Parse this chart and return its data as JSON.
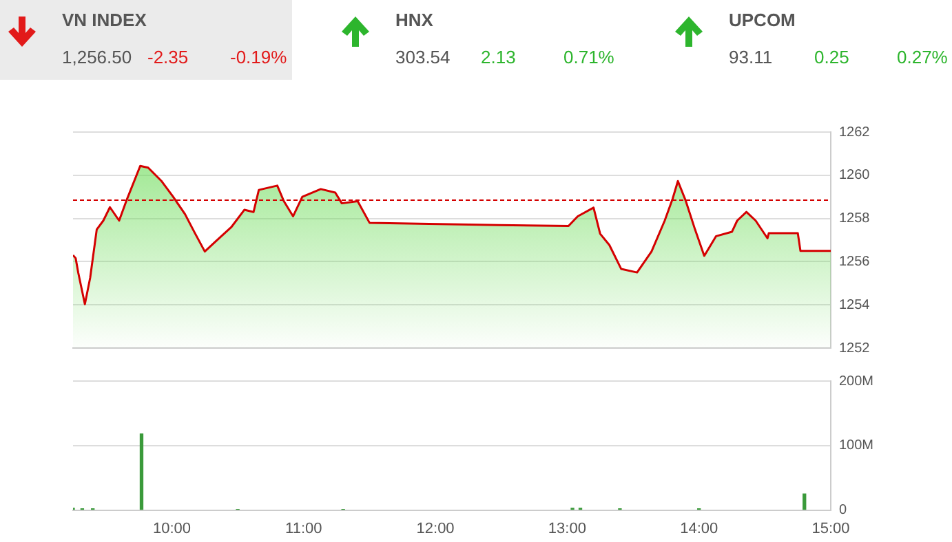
{
  "chart_data": [
    {
      "type": "other",
      "categories": [
        "VN INDEX",
        "HNX",
        "UPCOM"
      ],
      "values": [
        -2.35,
        2.13,
        0.25
      ],
      "value_labels": [
        "-2.35",
        "2.13",
        "0.25"
      ],
      "annotations": [
        "1,256.50",
        "-0.19%",
        "303.54",
        "0.71%",
        "93.11",
        "0.27%"
      ]
    },
    {
      "type": "area",
      "x": [
        9.25,
        9.27,
        9.29,
        9.34,
        9.38,
        9.43,
        9.48,
        9.53,
        9.6,
        9.66,
        9.76,
        9.82,
        9.92,
        10.01,
        10.1,
        10.17,
        10.25,
        10.34,
        10.45,
        10.55,
        10.62,
        10.66,
        10.8,
        10.85,
        10.92,
        10.99,
        11.13,
        11.24,
        11.29,
        11.41,
        11.5,
        12.48,
        13.01,
        13.08,
        13.2,
        13.25,
        13.32,
        13.41,
        13.53,
        13.64,
        13.74,
        13.8,
        13.84,
        13.9,
        13.97,
        14.04,
        14.13,
        14.25,
        14.29,
        14.36,
        14.43,
        14.52,
        14.53,
        14.75,
        14.77,
        15.0
      ],
      "series": [
        {
          "color": "#d40000",
          "values": [
            1256.3,
            1256.16,
            1255.48,
            1254.03,
            1255.25,
            1257.49,
            1257.9,
            1258.52,
            1257.9,
            1258.9,
            1260.43,
            1260.35,
            1259.74,
            1259.0,
            1258.2,
            1257.38,
            1256.47,
            1256.98,
            1257.59,
            1258.4,
            1258.3,
            1259.32,
            1259.52,
            1258.8,
            1258.1,
            1259.0,
            1259.36,
            1259.2,
            1258.7,
            1258.8,
            1257.8,
            1257.69,
            1257.65,
            1258.1,
            1258.5,
            1257.29,
            1256.77,
            1255.66,
            1255.5,
            1256.47,
            1257.9,
            1258.91,
            1259.73,
            1258.81,
            1257.49,
            1256.27,
            1257.18,
            1257.38,
            1257.9,
            1258.3,
            1257.9,
            1257.08,
            1257.32,
            1257.32,
            1256.5,
            1256.5
          ]
        }
      ],
      "xlim": [
        9.25,
        15
      ],
      "ylim": [
        1252,
        1262
      ],
      "yticks": [
        1252,
        1254,
        1256,
        1258,
        1260,
        1262
      ],
      "grid": "y",
      "tick_labels": "y",
      "legend": false,
      "ref_lines": [
        {
          "axis": "y",
          "value": 1258.85,
          "color": "#d40000",
          "line_style": "dashed"
        }
      ]
    },
    {
      "type": "bar",
      "x": [
        9.25,
        9.32,
        9.4,
        9.77,
        10.5,
        11.3,
        13.04,
        13.1,
        13.4,
        14.0,
        14.8
      ],
      "values": [
        3,
        2,
        2,
        118,
        1,
        1,
        3,
        3,
        2,
        2,
        25
      ],
      "color": "#3a9a3a",
      "xlim": [
        9.25,
        15
      ],
      "xticks": [
        {
          "value": 10,
          "label": "10:00"
        },
        {
          "value": 11,
          "label": "11:00"
        },
        {
          "value": 12,
          "label": "12:00"
        },
        {
          "value": 13,
          "label": "13:00"
        },
        {
          "value": 14,
          "label": "14:00"
        },
        {
          "value": 15,
          "label": "15:00"
        }
      ],
      "ylim": [
        0,
        200
      ],
      "yticks": [
        {
          "value": 0,
          "label": "0"
        },
        {
          "value": 100,
          "label": "100M"
        },
        {
          "value": 200,
          "label": "200M"
        }
      ],
      "grid": "y",
      "legend": false
    }
  ]
}
